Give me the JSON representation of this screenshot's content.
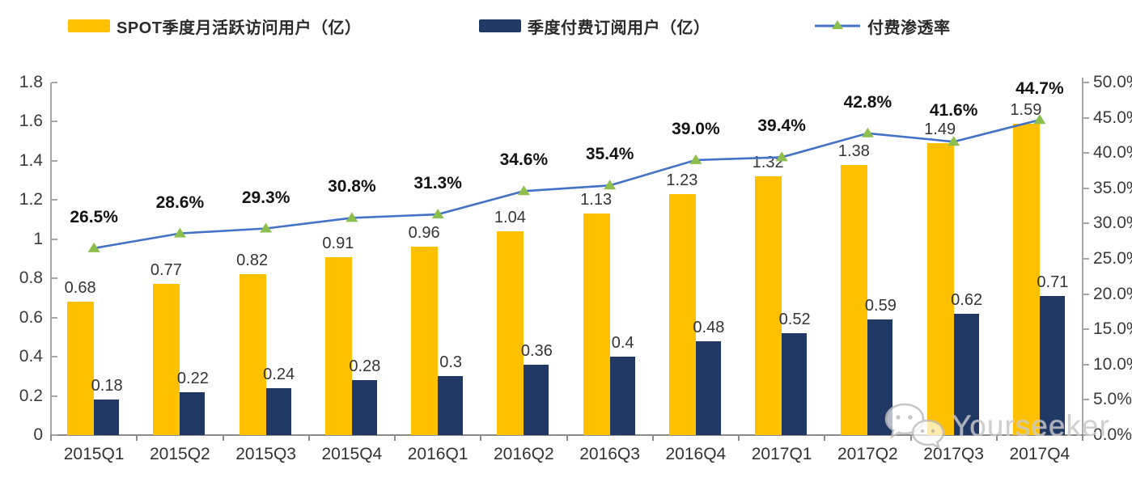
{
  "legend": [
    {
      "label": "SPOT季度月活跃访问用户（亿）"
    },
    {
      "label": "季度付费订阅用户（亿）"
    },
    {
      "label": "付费渗透率"
    }
  ],
  "watermark": {
    "text": "Yourseeker",
    "icon": "wechat-chat-bubbles"
  },
  "chart_data": {
    "type": "bar+line combo (dual axis)",
    "categories": [
      "2015Q1",
      "2015Q2",
      "2015Q3",
      "2015Q4",
      "2016Q1",
      "2016Q2",
      "2016Q3",
      "2016Q4",
      "2017Q1",
      "2017Q2",
      "2017Q3",
      "2017Q4"
    ],
    "series": [
      {
        "name": "SPOT季度月活跃访问用户（亿）",
        "type": "bar",
        "axis": "left",
        "color": "#FFC000",
        "values": [
          0.68,
          0.77,
          0.82,
          0.91,
          0.96,
          1.04,
          1.13,
          1.23,
          1.32,
          1.38,
          1.49,
          1.59
        ],
        "labels": [
          "0.68",
          "0.77",
          "0.82",
          "0.91",
          "0.96",
          "1.04",
          "1.13",
          "1.23",
          "1.32",
          "1.38",
          "1.49",
          "1.59"
        ]
      },
      {
        "name": "季度付费订阅用户（亿）",
        "type": "bar",
        "axis": "left",
        "color": "#1F3864",
        "values": [
          0.18,
          0.22,
          0.24,
          0.28,
          0.3,
          0.36,
          0.4,
          0.48,
          0.52,
          0.59,
          0.62,
          0.71
        ],
        "labels": [
          "0.18",
          "0.22",
          "0.24",
          "0.28",
          "0.3",
          "0.36",
          "0.4",
          "0.48",
          "0.52",
          "0.59",
          "0.62",
          "0.71"
        ]
      },
      {
        "name": "付费渗透率",
        "type": "line",
        "axis": "right",
        "line_color": "#4472C4",
        "marker_color": "#8CBF4E",
        "marker": "triangle",
        "values": [
          26.5,
          28.6,
          29.3,
          30.8,
          31.3,
          34.6,
          35.4,
          39.0,
          39.4,
          42.8,
          41.6,
          44.7
        ],
        "labels": [
          "26.5%",
          "28.6%",
          "29.3%",
          "30.8%",
          "31.3%",
          "34.6%",
          "35.4%",
          "39.0%",
          "39.4%",
          "42.8%",
          "41.6%",
          "44.7%"
        ]
      }
    ],
    "left_axis": {
      "min": 0,
      "max": 1.8,
      "step": 0.2,
      "ticks": [
        "1.8",
        "1.6",
        "1.4",
        "1.2",
        "1",
        "0.8",
        "0.6",
        "0.4",
        "0.2",
        "0"
      ]
    },
    "right_axis": {
      "min": 0,
      "max": 50,
      "step": 5,
      "ticks": [
        "50.0%",
        "45.0%",
        "40.0%",
        "35.0%",
        "30.0%",
        "25.0%",
        "20.0%",
        "15.0%",
        "10.0%",
        "5.0%",
        "0.0%"
      ]
    },
    "grid": false,
    "legend_position": "top"
  }
}
